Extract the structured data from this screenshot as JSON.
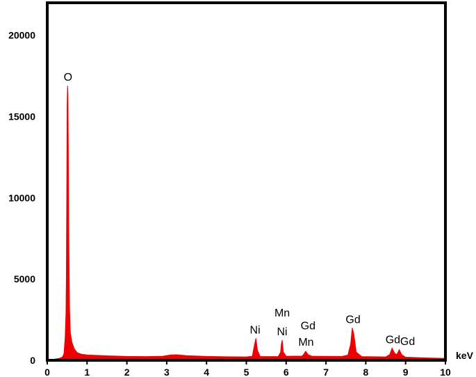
{
  "chart_data": {
    "type": "area",
    "title": "",
    "xlabel": "keV",
    "ylabel": "",
    "xlim": [
      0,
      10
    ],
    "ylim": [
      0,
      22000
    ],
    "grid": false,
    "legend": "none",
    "x_ticks": [
      0,
      1,
      2,
      3,
      4,
      5,
      6,
      7,
      8,
      9,
      10
    ],
    "y_ticks": [
      0,
      5000,
      10000,
      15000,
      20000
    ],
    "series_color": "#ee0000",
    "spectrum": [
      {
        "x": 0.0,
        "y": 0
      },
      {
        "x": 0.1,
        "y": 30
      },
      {
        "x": 0.2,
        "y": 80
      },
      {
        "x": 0.3,
        "y": 120
      },
      {
        "x": 0.38,
        "y": 200
      },
      {
        "x": 0.42,
        "y": 400
      },
      {
        "x": 0.45,
        "y": 1400
      },
      {
        "x": 0.47,
        "y": 2900
      },
      {
        "x": 0.48,
        "y": 5200
      },
      {
        "x": 0.49,
        "y": 10400
      },
      {
        "x": 0.5,
        "y": 15800
      },
      {
        "x": 0.51,
        "y": 16900
      },
      {
        "x": 0.52,
        "y": 16400
      },
      {
        "x": 0.53,
        "y": 12500
      },
      {
        "x": 0.54,
        "y": 7800
      },
      {
        "x": 0.56,
        "y": 3200
      },
      {
        "x": 0.58,
        "y": 1700
      },
      {
        "x": 0.62,
        "y": 1100
      },
      {
        "x": 0.68,
        "y": 700
      },
      {
        "x": 0.75,
        "y": 480
      },
      {
        "x": 0.85,
        "y": 380
      },
      {
        "x": 1.0,
        "y": 330
      },
      {
        "x": 1.5,
        "y": 280
      },
      {
        "x": 2.0,
        "y": 240
      },
      {
        "x": 2.5,
        "y": 230
      },
      {
        "x": 2.9,
        "y": 250
      },
      {
        "x": 3.1,
        "y": 330
      },
      {
        "x": 3.25,
        "y": 340
      },
      {
        "x": 3.5,
        "y": 290
      },
      {
        "x": 4.0,
        "y": 240
      },
      {
        "x": 4.5,
        "y": 220
      },
      {
        "x": 5.0,
        "y": 210
      },
      {
        "x": 5.15,
        "y": 250
      },
      {
        "x": 5.2,
        "y": 900
      },
      {
        "x": 5.24,
        "y": 1350
      },
      {
        "x": 5.28,
        "y": 600
      },
      {
        "x": 5.35,
        "y": 230
      },
      {
        "x": 5.8,
        "y": 230
      },
      {
        "x": 5.86,
        "y": 500
      },
      {
        "x": 5.88,
        "y": 1000
      },
      {
        "x": 5.9,
        "y": 1250
      },
      {
        "x": 5.93,
        "y": 500
      },
      {
        "x": 6.0,
        "y": 250
      },
      {
        "x": 6.4,
        "y": 260
      },
      {
        "x": 6.45,
        "y": 400
      },
      {
        "x": 6.49,
        "y": 560
      },
      {
        "x": 6.55,
        "y": 350
      },
      {
        "x": 6.65,
        "y": 250
      },
      {
        "x": 7.4,
        "y": 240
      },
      {
        "x": 7.55,
        "y": 320
      },
      {
        "x": 7.62,
        "y": 1000
      },
      {
        "x": 7.66,
        "y": 2000
      },
      {
        "x": 7.7,
        "y": 1600
      },
      {
        "x": 7.76,
        "y": 500
      },
      {
        "x": 7.9,
        "y": 230
      },
      {
        "x": 8.5,
        "y": 210
      },
      {
        "x": 8.6,
        "y": 350
      },
      {
        "x": 8.66,
        "y": 750
      },
      {
        "x": 8.72,
        "y": 450
      },
      {
        "x": 8.78,
        "y": 350
      },
      {
        "x": 8.84,
        "y": 650
      },
      {
        "x": 8.9,
        "y": 350
      },
      {
        "x": 9.0,
        "y": 190
      },
      {
        "x": 9.5,
        "y": 150
      },
      {
        "x": 10.0,
        "y": 120
      }
    ],
    "annotations": [
      {
        "text": "O",
        "x": 0.52,
        "y": 17200
      },
      {
        "text": "Ni",
        "x": 5.22,
        "y": 1650
      },
      {
        "text": "Mn",
        "x": 5.9,
        "y": 2700
      },
      {
        "text": "Ni",
        "x": 5.9,
        "y": 1550
      },
      {
        "text": "Gd",
        "x": 6.55,
        "y": 1900
      },
      {
        "text": "Mn",
        "x": 6.5,
        "y": 900
      },
      {
        "text": "Gd",
        "x": 7.68,
        "y": 2300
      },
      {
        "text": "Gd",
        "x": 8.68,
        "y": 1050
      },
      {
        "text": "Gd",
        "x": 9.05,
        "y": 950
      }
    ]
  }
}
